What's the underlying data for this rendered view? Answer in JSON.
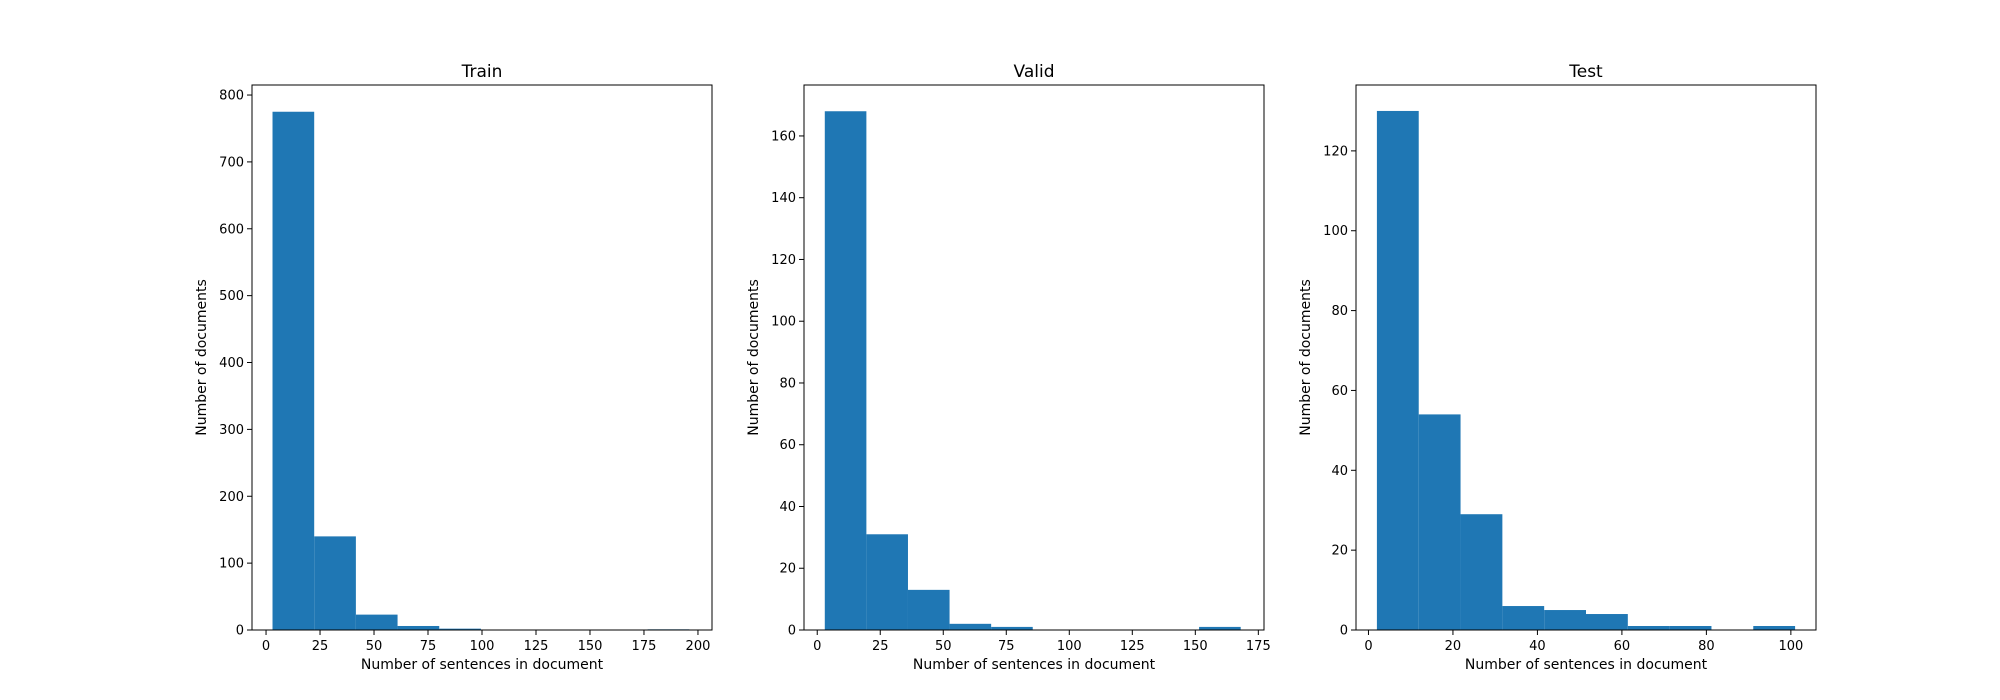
{
  "figure": {
    "bar_color": "#1f77b4",
    "background": "#ffffff"
  },
  "chart_data": [
    {
      "type": "bar",
      "title": "Train",
      "xlabel": "Number of sentences in document",
      "ylabel": "Number of documents",
      "xlim": [
        -6.5,
        206.5
      ],
      "ylim": [
        0,
        815
      ],
      "xticks": [
        0,
        25,
        50,
        75,
        100,
        125,
        150,
        175,
        200
      ],
      "yticks": [
        0,
        100,
        200,
        300,
        400,
        500,
        600,
        700,
        800
      ],
      "bins": [
        [
          3,
          22.3
        ],
        [
          22.3,
          41.6
        ],
        [
          41.6,
          60.9
        ],
        [
          60.9,
          80.2
        ],
        [
          80.2,
          99.5
        ],
        [
          99.5,
          118.8
        ],
        [
          118.8,
          138.1
        ],
        [
          138.1,
          157.4
        ],
        [
          157.4,
          176.7
        ],
        [
          176.7,
          196
        ]
      ],
      "values": [
        775,
        140,
        23,
        6,
        2,
        0,
        0,
        0,
        0,
        1
      ],
      "grid": false
    },
    {
      "type": "bar",
      "title": "Valid",
      "xlabel": "Number of sentences in document",
      "ylabel": "Number of documents",
      "xlim": [
        -5.25,
        177.25
      ],
      "ylim": [
        0,
        176.5
      ],
      "xticks": [
        0,
        25,
        50,
        75,
        100,
        125,
        150,
        175
      ],
      "yticks": [
        0,
        20,
        40,
        60,
        80,
        100,
        120,
        140,
        160
      ],
      "bins": [
        [
          3,
          19.5
        ],
        [
          19.5,
          36
        ],
        [
          36,
          52.5
        ],
        [
          52.5,
          69
        ],
        [
          69,
          85.5
        ],
        [
          85.5,
          102
        ],
        [
          102,
          118.5
        ],
        [
          118.5,
          135
        ],
        [
          135,
          151.5
        ],
        [
          151.5,
          168
        ]
      ],
      "values": [
        168,
        31,
        13,
        2,
        1,
        0,
        0,
        0,
        0,
        1
      ],
      "grid": false
    },
    {
      "type": "bar",
      "title": "Test",
      "xlabel": "Number of sentences in document",
      "ylabel": "Number of documents",
      "xlim": [
        -2.95,
        105.95
      ],
      "ylim": [
        0,
        136.5
      ],
      "xticks": [
        0,
        20,
        40,
        60,
        80,
        100
      ],
      "yticks": [
        0,
        20,
        40,
        60,
        80,
        100,
        120
      ],
      "bins": [
        [
          2,
          11.9
        ],
        [
          11.9,
          21.8
        ],
        [
          21.8,
          31.7
        ],
        [
          31.7,
          41.6
        ],
        [
          41.6,
          51.5
        ],
        [
          51.5,
          61.4
        ],
        [
          61.4,
          71.3
        ],
        [
          71.3,
          81.2
        ],
        [
          81.2,
          91.1
        ],
        [
          91.1,
          101
        ]
      ],
      "values": [
        130,
        54,
        29,
        6,
        5,
        4,
        1,
        1,
        0,
        1
      ],
      "grid": false
    }
  ]
}
